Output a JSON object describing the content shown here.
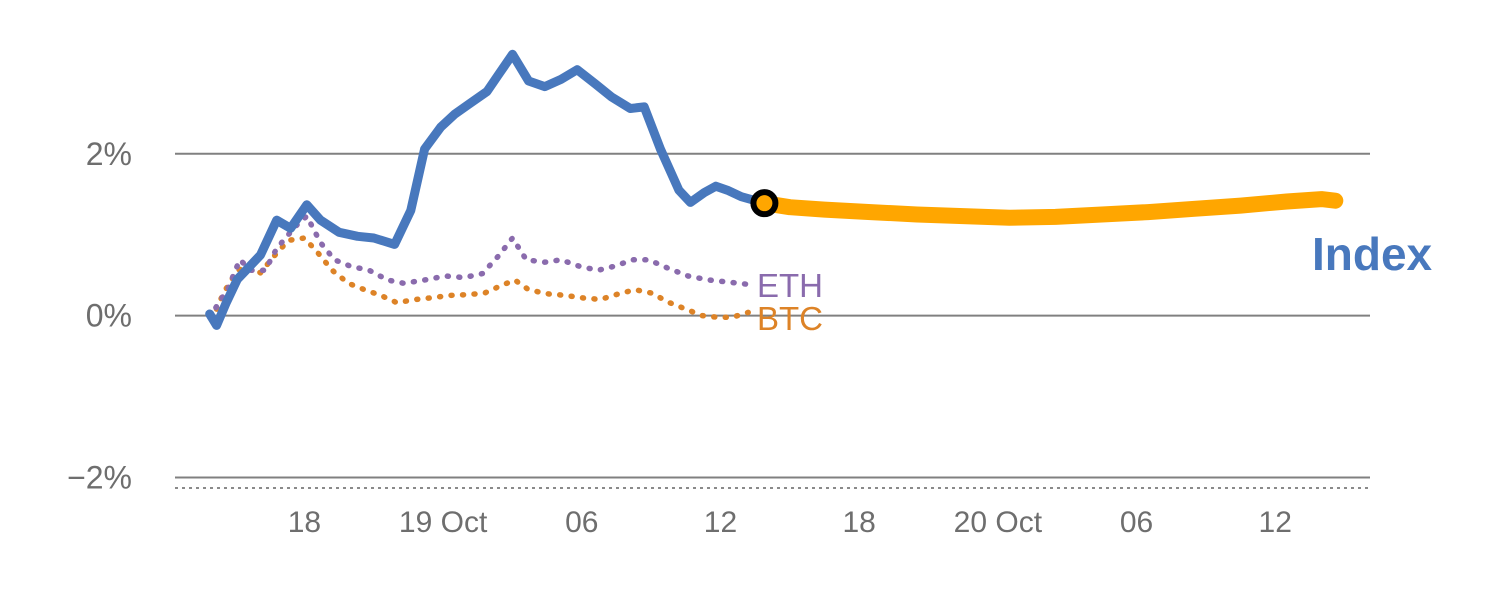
{
  "chart_data": {
    "type": "line",
    "title": "",
    "description": "Percent change of crypto Index (solid blue history, solid amber projection with junction marker) vs ETH and BTC dotted series",
    "grid": "horizontal",
    "legend_position": "inline-labels",
    "x_axis": {
      "unit": "hours since 18 Oct 00:00",
      "range": [
        12.4,
        64.1
      ],
      "ticks": [
        {
          "t": 18,
          "label": "18"
        },
        {
          "t": 24,
          "label": "19 Oct"
        },
        {
          "t": 30,
          "label": "06"
        },
        {
          "t": 36,
          "label": "12"
        },
        {
          "t": 42,
          "label": "18"
        },
        {
          "t": 48,
          "label": "20 Oct"
        },
        {
          "t": 54,
          "label": "06"
        },
        {
          "t": 60,
          "label": "12"
        }
      ]
    },
    "y_axis": {
      "unit": "percent",
      "range": [
        -2.13,
        3.53
      ],
      "ticks": [
        {
          "v": 2,
          "label": "2%"
        },
        {
          "v": 0,
          "label": "0%"
        },
        {
          "v": -2,
          "label": "−2%"
        }
      ]
    },
    "series": [
      {
        "name": "index-history",
        "color": "#4878bd",
        "style": "solid",
        "width": 9,
        "points": [
          [
            13.9,
            0.02
          ],
          [
            14.2,
            -0.12
          ],
          [
            14.6,
            0.15
          ],
          [
            15.1,
            0.45
          ],
          [
            15.6,
            0.6
          ],
          [
            16.1,
            0.75
          ],
          [
            16.8,
            1.18
          ],
          [
            17.4,
            1.08
          ],
          [
            18.1,
            1.37
          ],
          [
            18.7,
            1.18
          ],
          [
            19.5,
            1.03
          ],
          [
            20.3,
            0.98
          ],
          [
            21.0,
            0.96
          ],
          [
            21.9,
            0.88
          ],
          [
            22.6,
            1.3
          ],
          [
            23.2,
            2.06
          ],
          [
            23.9,
            2.33
          ],
          [
            24.5,
            2.49
          ],
          [
            25.1,
            2.61
          ],
          [
            25.9,
            2.77
          ],
          [
            26.4,
            2.98
          ],
          [
            27.0,
            3.23
          ],
          [
            27.7,
            2.9
          ],
          [
            28.4,
            2.83
          ],
          [
            29.1,
            2.92
          ],
          [
            29.8,
            3.04
          ],
          [
            30.6,
            2.86
          ],
          [
            31.3,
            2.7
          ],
          [
            32.1,
            2.56
          ],
          [
            32.7,
            2.58
          ],
          [
            33.4,
            2.06
          ],
          [
            34.2,
            1.55
          ],
          [
            34.7,
            1.4
          ],
          [
            35.3,
            1.52
          ],
          [
            35.8,
            1.6
          ],
          [
            36.3,
            1.55
          ],
          [
            36.9,
            1.47
          ],
          [
            37.9,
            1.39
          ]
        ]
      },
      {
        "name": "index-projection",
        "color": "#ffa600",
        "style": "solid",
        "width": 16,
        "points": [
          [
            37.9,
            1.39
          ],
          [
            39.0,
            1.34
          ],
          [
            40.5,
            1.31
          ],
          [
            42.5,
            1.28
          ],
          [
            44.5,
            1.25
          ],
          [
            46.5,
            1.23
          ],
          [
            48.5,
            1.21
          ],
          [
            50.5,
            1.22
          ],
          [
            52.5,
            1.25
          ],
          [
            54.5,
            1.28
          ],
          [
            56.5,
            1.32
          ],
          [
            58.5,
            1.36
          ],
          [
            60.5,
            1.41
          ],
          [
            62.0,
            1.44
          ],
          [
            62.6,
            1.42
          ]
        ]
      },
      {
        "name": "ETH",
        "color": "#8a6bad",
        "style": "dotted",
        "width": 5.5,
        "points": [
          [
            13.9,
            -0.02
          ],
          [
            14.7,
            0.34
          ],
          [
            15.2,
            0.69
          ],
          [
            15.7,
            0.56
          ],
          [
            16.3,
            0.56
          ],
          [
            16.8,
            0.83
          ],
          [
            17.6,
            1.1
          ],
          [
            18.1,
            1.23
          ],
          [
            18.7,
            0.9
          ],
          [
            19.3,
            0.69
          ],
          [
            20.0,
            0.61
          ],
          [
            20.8,
            0.56
          ],
          [
            21.6,
            0.44
          ],
          [
            22.3,
            0.4
          ],
          [
            23.2,
            0.44
          ],
          [
            24.1,
            0.49
          ],
          [
            24.9,
            0.47
          ],
          [
            25.7,
            0.52
          ],
          [
            26.4,
            0.74
          ],
          [
            27.0,
            0.96
          ],
          [
            27.6,
            0.69
          ],
          [
            28.4,
            0.66
          ],
          [
            29.1,
            0.69
          ],
          [
            29.9,
            0.61
          ],
          [
            30.7,
            0.56
          ],
          [
            31.4,
            0.61
          ],
          [
            32.2,
            0.69
          ],
          [
            32.9,
            0.69
          ],
          [
            33.7,
            0.59
          ],
          [
            34.6,
            0.49
          ],
          [
            35.5,
            0.44
          ],
          [
            36.2,
            0.42
          ],
          [
            37.1,
            0.39
          ]
        ]
      },
      {
        "name": "BTC",
        "color": "#dd8327",
        "style": "dotted",
        "width": 5.5,
        "points": [
          [
            14.0,
            -0.05
          ],
          [
            14.5,
            0.28
          ],
          [
            15.1,
            0.56
          ],
          [
            15.6,
            0.61
          ],
          [
            16.1,
            0.53
          ],
          [
            16.7,
            0.74
          ],
          [
            17.3,
            0.93
          ],
          [
            18.0,
            0.96
          ],
          [
            18.6,
            0.77
          ],
          [
            19.2,
            0.56
          ],
          [
            19.9,
            0.4
          ],
          [
            20.6,
            0.32
          ],
          [
            21.3,
            0.25
          ],
          [
            22.0,
            0.16
          ],
          [
            22.8,
            0.2
          ],
          [
            23.5,
            0.22
          ],
          [
            24.3,
            0.25
          ],
          [
            25.1,
            0.26
          ],
          [
            25.8,
            0.28
          ],
          [
            26.5,
            0.37
          ],
          [
            27.1,
            0.44
          ],
          [
            27.7,
            0.32
          ],
          [
            28.5,
            0.27
          ],
          [
            29.3,
            0.25
          ],
          [
            30.0,
            0.22
          ],
          [
            30.8,
            0.2
          ],
          [
            31.6,
            0.27
          ],
          [
            32.3,
            0.32
          ],
          [
            33.0,
            0.28
          ],
          [
            33.8,
            0.16
          ],
          [
            34.6,
            0.07
          ],
          [
            35.2,
            0.0
          ],
          [
            35.9,
            -0.02
          ],
          [
            36.5,
            -0.02
          ],
          [
            37.2,
            0.04
          ]
        ]
      }
    ],
    "marker": {
      "t": 37.9,
      "v": 1.39,
      "shape": "circle",
      "fill": "#ffa600",
      "edge": "#000000"
    },
    "labels": {
      "index": "Index",
      "eth": "ETH",
      "btc": "BTC"
    },
    "colors": {
      "index_history": "#4878bd",
      "index_projection": "#ffa600",
      "eth": "#8a6bad",
      "btc": "#dd8327",
      "gridline": "#808080",
      "axis_dashed": "#8a8a8a",
      "tick_label": "#6e6e6e"
    }
  }
}
